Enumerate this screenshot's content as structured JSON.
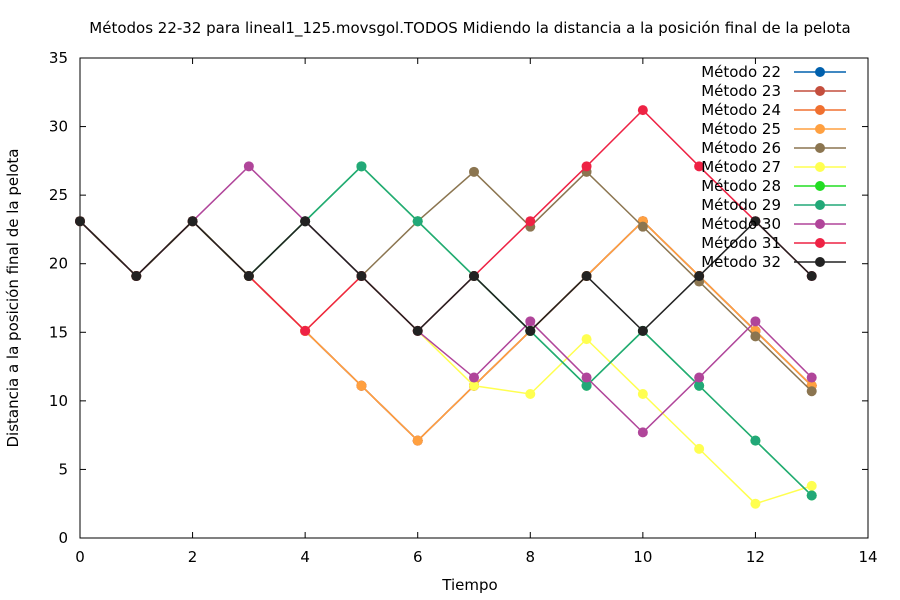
{
  "chart_data": {
    "type": "line",
    "title": "Métodos 22-32 para lineal1_125.movsgol.TODOS Midiendo la distancia a la posición final de la pelota",
    "xlabel": "Tiempo",
    "ylabel": "Distancia a la posición final de la pelota",
    "xlim": [
      0,
      14
    ],
    "ylim": [
      0,
      35
    ],
    "xticks": [
      0,
      2,
      4,
      6,
      8,
      10,
      12,
      14
    ],
    "yticks": [
      0,
      5,
      10,
      15,
      20,
      25,
      30,
      35
    ],
    "grid": false,
    "legend_position": "top-right",
    "x": [
      0,
      1,
      2,
      3,
      4,
      5,
      6,
      7,
      8,
      9,
      10,
      11,
      12,
      13
    ],
    "series": [
      {
        "name": "Método 22",
        "color": "#0060ad",
        "values": [
          23.1,
          19.1,
          23.1,
          19.1,
          15.1,
          11.1,
          7.1,
          11.1,
          15.1,
          19.1,
          23.1,
          19.1,
          15.1,
          11.1
        ]
      },
      {
        "name": "Método 23",
        "color": "#c44e3d",
        "values": [
          23.1,
          19.1,
          23.1,
          19.1,
          15.1,
          11.1,
          7.1,
          11.1,
          15.1,
          19.1,
          23.1,
          19.1,
          15.1,
          11.1
        ]
      },
      {
        "name": "Método 24",
        "color": "#f07030",
        "values": [
          23.1,
          19.1,
          23.1,
          19.1,
          15.1,
          11.1,
          7.1,
          11.1,
          15.1,
          19.1,
          23.1,
          19.1,
          15.1,
          11.1
        ]
      },
      {
        "name": "Método 25",
        "color": "#ffa040",
        "values": [
          23.1,
          19.1,
          23.1,
          19.1,
          15.1,
          11.1,
          7.1,
          11.1,
          15.1,
          19.1,
          23.1,
          19.1,
          15.1,
          11.1
        ]
      },
      {
        "name": "Método 26",
        "color": "#8b7550",
        "values": [
          23.1,
          19.1,
          23.1,
          19.1,
          23.1,
          19.1,
          23.1,
          26.7,
          22.7,
          26.7,
          22.7,
          18.7,
          14.7,
          10.7
        ]
      },
      {
        "name": "Método 27",
        "color": "#ffff50",
        "values": [
          23.1,
          19.1,
          23.1,
          19.1,
          15.1,
          19.1,
          15.1,
          11.1,
          10.5,
          14.5,
          10.5,
          6.5,
          2.5,
          3.8
        ]
      },
      {
        "name": "Método 28",
        "color": "#22dd22",
        "values": [
          23.1,
          19.1,
          23.1,
          19.1,
          23.1,
          27.1,
          23.1,
          19.1,
          15.1,
          11.1,
          15.1,
          11.1,
          7.1,
          3.1
        ]
      },
      {
        "name": "Método 29",
        "color": "#22a878",
        "values": [
          23.1,
          19.1,
          23.1,
          19.1,
          23.1,
          27.1,
          23.1,
          19.1,
          15.1,
          11.1,
          15.1,
          11.1,
          7.1,
          3.1
        ]
      },
      {
        "name": "Método 30",
        "color": "#b0459a",
        "values": [
          23.1,
          19.1,
          23.1,
          27.1,
          23.1,
          19.1,
          15.1,
          11.7,
          15.8,
          11.7,
          7.7,
          11.7,
          15.8,
          11.7
        ]
      },
      {
        "name": "Método 31",
        "color": "#ee2244",
        "values": [
          23.1,
          19.1,
          23.1,
          19.1,
          15.1,
          19.1,
          15.1,
          19.1,
          23.1,
          27.1,
          31.2,
          27.1,
          23.1,
          19.1
        ]
      },
      {
        "name": "Método 32",
        "color": "#222222",
        "values": [
          23.1,
          19.1,
          23.1,
          19.1,
          23.1,
          19.1,
          15.1,
          19.1,
          15.1,
          19.1,
          15.1,
          19.1,
          23.1,
          19.1
        ]
      }
    ]
  }
}
